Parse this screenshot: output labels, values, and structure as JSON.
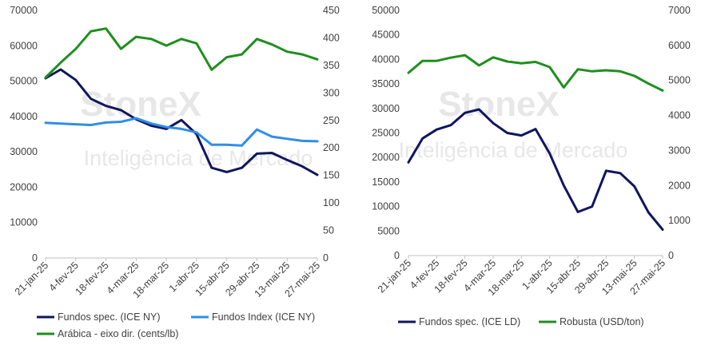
{
  "watermark": {
    "brand": "StoneX",
    "tagline": "Inteligência de Mercado"
  },
  "chart_data": [
    {
      "type": "line",
      "x": [
        "21-jan-25",
        "28-jan-25",
        "4-fev-25",
        "11-fev-25",
        "18-fev-25",
        "25-fev-25",
        "4-mar-25",
        "11-mar-25",
        "18-mar-25",
        "25-mar-25",
        "1-abr-25",
        "8-abr-25",
        "15-abr-25",
        "22-abr-25",
        "29-abr-25",
        "6-mai-25",
        "13-mai-25",
        "20-mai-25",
        "27-mai-25"
      ],
      "xtick_labels": [
        "21-jan-25",
        "4-fev-25",
        "18-fev-25",
        "4-mar-25",
        "18-mar-25",
        "1-abr-25",
        "15-abr-25",
        "29-abr-25",
        "13-mai-25",
        "27-mai-25"
      ],
      "y_left": {
        "min": 0,
        "max": 70000,
        "ticks": [
          "0",
          "10000",
          "20000",
          "30000",
          "40000",
          "50000",
          "60000",
          "70000"
        ]
      },
      "y_right": {
        "min": 0,
        "max": 450,
        "ticks": [
          "0",
          "50",
          "100",
          "150",
          "200",
          "250",
          "300",
          "350",
          "400",
          "450"
        ]
      },
      "series": [
        {
          "name": "Fundos spec. (ICE NY)",
          "axis": "left",
          "color": "#10165e",
          "values": [
            50800,
            53300,
            50300,
            45000,
            43000,
            41800,
            39200,
            37400,
            36500,
            39000,
            35000,
            25500,
            24300,
            25500,
            29500,
            29700,
            27700,
            25900,
            23500
          ]
        },
        {
          "name": "Fundos Index (ICE NY)",
          "axis": "left",
          "color": "#2f8ee8",
          "values": [
            38200,
            38000,
            37800,
            37600,
            38300,
            38500,
            39500,
            38000,
            37000,
            36500,
            35500,
            32000,
            32000,
            31800,
            36300,
            34300,
            33700,
            33100,
            33000
          ]
        },
        {
          "name": "Arábica - eixo dir. (cents/lb)",
          "axis": "right",
          "color": "#1e8f1e",
          "values": [
            328,
            355,
            380,
            412,
            417,
            380,
            402,
            398,
            386,
            398,
            390,
            342,
            365,
            370,
            398,
            388,
            375,
            370,
            361
          ]
        }
      ],
      "legend": "bottom"
    },
    {
      "type": "line",
      "x": [
        "21-jan-25",
        "28-jan-25",
        "4-fev-25",
        "11-fev-25",
        "18-fev-25",
        "25-fev-25",
        "4-mar-25",
        "11-mar-25",
        "18-mar-25",
        "25-mar-25",
        "1-abr-25",
        "8-abr-25",
        "15-abr-25",
        "22-abr-25",
        "29-abr-25",
        "6-mai-25",
        "13-mai-25",
        "20-mai-25",
        "27-mai-25"
      ],
      "xtick_labels": [
        "21-jan-25",
        "4-fev-25",
        "18-fev-25",
        "4-mar-25",
        "18-mar-25",
        "1-abr-25",
        "15-abr-25",
        "29-abr-25",
        "13-mai-25",
        "27-mai-25"
      ],
      "y_left": {
        "min": 0,
        "max": 50000,
        "ticks": [
          "0",
          "5000",
          "10000",
          "15000",
          "20000",
          "25000",
          "30000",
          "35000",
          "40000",
          "45000",
          "50000"
        ]
      },
      "y_right": {
        "min": 0,
        "max": 7000,
        "ticks": [
          "0",
          "1000",
          "2000",
          "3000",
          "4000",
          "5000",
          "6000",
          "7000"
        ]
      },
      "series": [
        {
          "name": "Fundos spec. (ICE LD)",
          "axis": "left",
          "color": "#10165e",
          "values": [
            19000,
            23900,
            25700,
            26600,
            29100,
            29800,
            27000,
            25000,
            24500,
            25800,
            20800,
            14300,
            8900,
            10000,
            17300,
            16800,
            14100,
            8800,
            5300
          ]
        },
        {
          "name": "Robusta (USD/ton)",
          "axis": "right",
          "color": "#1e8f1e",
          "values": [
            5220,
            5560,
            5560,
            5650,
            5720,
            5430,
            5660,
            5540,
            5490,
            5530,
            5380,
            4800,
            5320,
            5260,
            5290,
            5260,
            5130,
            4910,
            4710
          ]
        }
      ],
      "legend": "bottom"
    }
  ]
}
